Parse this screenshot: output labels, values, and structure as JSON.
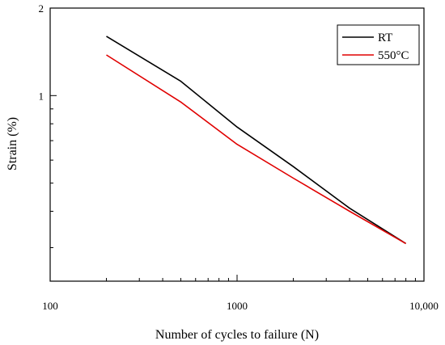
{
  "chart_data": {
    "type": "line",
    "title": "",
    "xlabel": "Number of cycles to failure (N)",
    "ylabel": "Strain (%)",
    "x_scale": "log",
    "y_scale": "log",
    "xlim": [
      100,
      10000
    ],
    "ylim": [
      0.23,
      2
    ],
    "x_ticks": [
      {
        "value": 100,
        "label": "100"
      },
      {
        "value": 1000,
        "label": "1000"
      },
      {
        "value": 10000,
        "label": "10,000"
      }
    ],
    "y_ticks": [
      {
        "value": 1,
        "label": "1"
      },
      {
        "value": 2,
        "label": "2"
      }
    ],
    "grid": false,
    "legend_position": "top-right",
    "series": [
      {
        "name": "RT",
        "color": "#000000",
        "points": [
          [
            200,
            1.6
          ],
          [
            500,
            1.12
          ],
          [
            1000,
            0.78
          ],
          [
            2000,
            0.57
          ],
          [
            4000,
            0.41
          ],
          [
            8000,
            0.31
          ]
        ]
      },
      {
        "name": "550°C",
        "color": "#e00000",
        "points": [
          [
            200,
            1.38
          ],
          [
            500,
            0.95
          ],
          [
            1000,
            0.68
          ],
          [
            2000,
            0.52
          ],
          [
            4000,
            0.4
          ],
          [
            8000,
            0.31
          ]
        ]
      }
    ]
  }
}
